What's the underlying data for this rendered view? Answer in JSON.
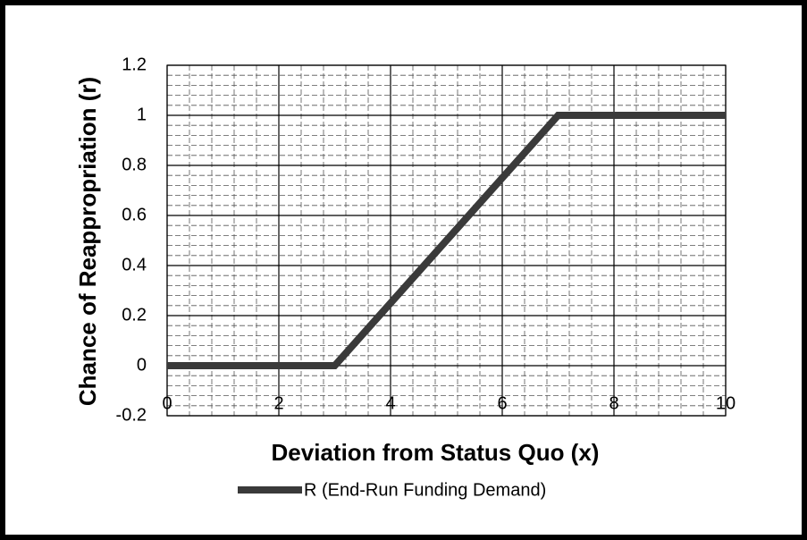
{
  "chart_data": {
    "type": "line",
    "x_label": "Deviation from Status Quo (x)",
    "y_label": "Chance of Reappropriation (r)",
    "x": [
      0,
      3,
      7,
      10
    ],
    "series": [
      {
        "name": "R (End-Run Funding Demand)",
        "color": "#3a3a3a",
        "values": [
          0,
          0,
          1,
          1
        ]
      }
    ],
    "xlim": [
      0,
      10
    ],
    "xticks": [
      0,
      2,
      4,
      6,
      8,
      10
    ],
    "ylim": [
      -0.2,
      1.2
    ],
    "yticks": [
      -0.2,
      0,
      0.2,
      0.4,
      0.6,
      0.8,
      1,
      1.2
    ],
    "grid": true,
    "minor_grid": true,
    "legend": "bottom"
  }
}
